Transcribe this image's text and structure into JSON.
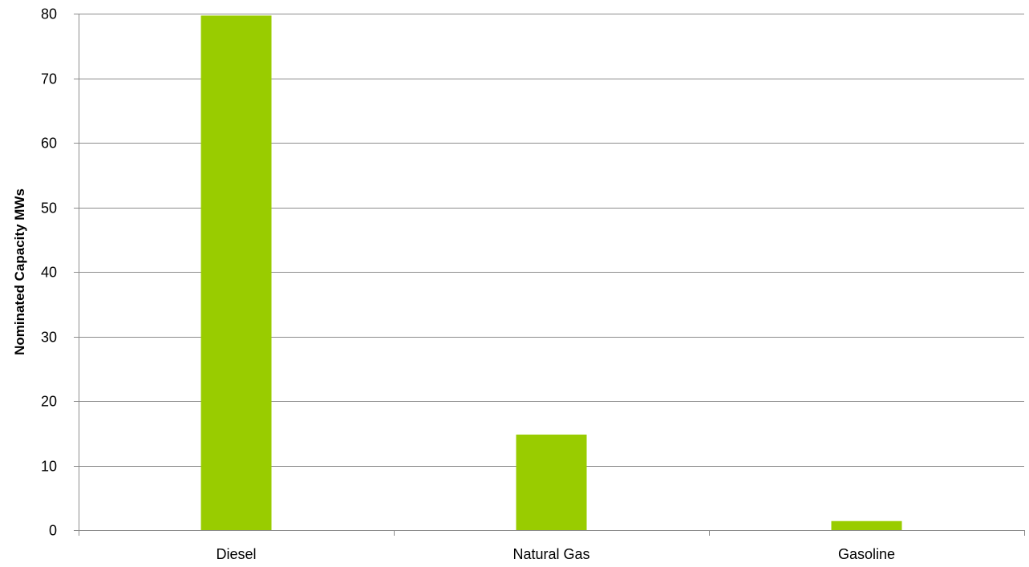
{
  "chart_data": {
    "type": "bar",
    "categories": [
      "Diesel",
      "Natural Gas",
      "Gasoline"
    ],
    "values": [
      79.7,
      14.8,
      1.4
    ],
    "ylabel": "Nominated Capacity MWs",
    "xlabel": "",
    "ylim": [
      0,
      80
    ],
    "y_ticks": [
      0,
      10,
      20,
      30,
      40,
      50,
      60,
      70,
      80
    ],
    "grid": "horizontal",
    "legend": "none",
    "colors": {
      "bar": "#99cc00",
      "grid": "#8c8c8c",
      "axis": "#8c8c8c"
    }
  }
}
